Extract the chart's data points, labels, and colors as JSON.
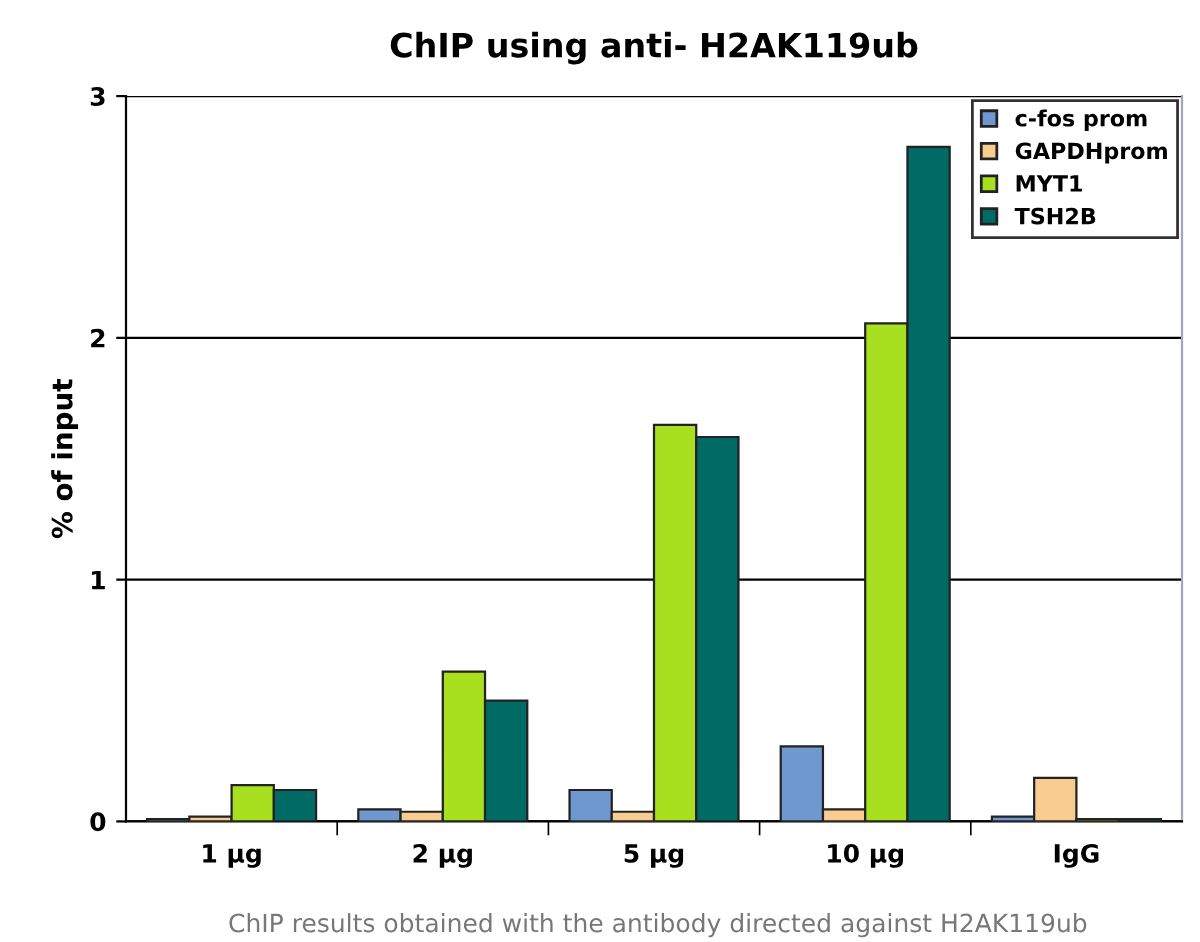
{
  "chart_data": {
    "type": "bar",
    "title": "ChIP using anti- H2AK119ub",
    "ylabel": "% of input",
    "categories": [
      "1 µg",
      "2 µg",
      "5 µg",
      "10 µg",
      "IgG"
    ],
    "series": [
      {
        "name": "c-fos prom",
        "color": "#7098d0",
        "values": [
          0.01,
          0.05,
          0.13,
          0.31,
          0.02
        ]
      },
      {
        "name": "GAPDHprom",
        "color": "#f8cc90",
        "values": [
          0.02,
          0.04,
          0.04,
          0.05,
          0.18
        ]
      },
      {
        "name": "MYT1",
        "color": "#a8e020",
        "values": [
          0.15,
          0.62,
          1.64,
          2.06,
          0.01
        ]
      },
      {
        "name": "TSH2B",
        "color": "#006a64",
        "values": [
          0.13,
          0.5,
          1.59,
          2.79,
          0.01
        ]
      }
    ],
    "ylim": [
      0,
      3
    ],
    "yticks": [
      0,
      1,
      2,
      3
    ],
    "grid": "y",
    "legend": "top right",
    "annotations": [
      "ChIP results obtained with the antibody directed against H2AK119ub"
    ]
  }
}
